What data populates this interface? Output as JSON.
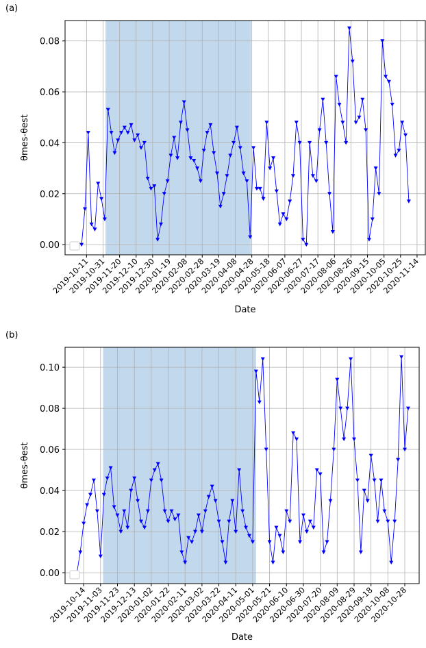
{
  "chart_data": [
    {
      "type": "line",
      "label": "(a)",
      "xlabel": "Date",
      "ylabel": "θmes-θest",
      "color": "#0000ff",
      "marker": "v",
      "grid": true,
      "legend": "lower left",
      "shaded_span": [
        "2019-11-03",
        "2020-04-27"
      ],
      "shade_color": "#c2d8ec",
      "xlim": [
        "2019-09-15",
        "2020-11-24"
      ],
      "xticks": [
        "2019-10-11",
        "2019-10-31",
        "2019-11-20",
        "2019-12-10",
        "2019-12-30",
        "2020-01-19",
        "2020-02-08",
        "2020-02-28",
        "2020-03-19",
        "2020-04-08",
        "2020-04-28",
        "2020-05-18",
        "2020-06-07",
        "2020-06-27",
        "2020-07-17",
        "2020-08-06",
        "2020-08-26",
        "2020-09-15",
        "2020-10-05",
        "2020-10-25",
        "2020-11-14"
      ],
      "ylim": [
        -0.004,
        0.088
      ],
      "yticks": [
        {
          "value": 0,
          "label": "0.00"
        },
        0.02,
        0.04,
        0.06,
        0.08
      ],
      "x": [
        "2019-10-05",
        "2019-10-09",
        "2019-10-13",
        "2019-10-17",
        "2019-10-21",
        "2019-10-25",
        "2019-10-29",
        "2019-11-02",
        "2019-11-06",
        "2019-11-10",
        "2019-11-14",
        "2019-11-18",
        "2019-11-22",
        "2019-11-26",
        "2019-11-30",
        "2019-12-04",
        "2019-12-08",
        "2019-12-12",
        "2019-12-16",
        "2019-12-20",
        "2019-12-24",
        "2019-12-28",
        "2020-01-01",
        "2020-01-05",
        "2020-01-09",
        "2020-01-13",
        "2020-01-17",
        "2020-01-21",
        "2020-01-25",
        "2020-01-29",
        "2020-02-02",
        "2020-02-06",
        "2020-02-10",
        "2020-02-14",
        "2020-02-18",
        "2020-02-22",
        "2020-02-26",
        "2020-03-01",
        "2020-03-05",
        "2020-03-09",
        "2020-03-13",
        "2020-03-17",
        "2020-03-21",
        "2020-03-25",
        "2020-03-29",
        "2020-04-02",
        "2020-04-06",
        "2020-04-10",
        "2020-04-14",
        "2020-04-18",
        "2020-04-22",
        "2020-04-26",
        "2020-04-30",
        "2020-05-04",
        "2020-05-08",
        "2020-05-12",
        "2020-05-16",
        "2020-05-20",
        "2020-05-24",
        "2020-05-28",
        "2020-06-01",
        "2020-06-05",
        "2020-06-09",
        "2020-06-13",
        "2020-06-17",
        "2020-06-21",
        "2020-06-25",
        "2020-06-29",
        "2020-07-03",
        "2020-07-07",
        "2020-07-11",
        "2020-07-15",
        "2020-07-19",
        "2020-07-23",
        "2020-07-27",
        "2020-07-31",
        "2020-08-04",
        "2020-08-08",
        "2020-08-12",
        "2020-08-16",
        "2020-08-20",
        "2020-08-24",
        "2020-08-28",
        "2020-09-01",
        "2020-09-05",
        "2020-09-09",
        "2020-09-13",
        "2020-09-17",
        "2020-09-21",
        "2020-09-25",
        "2020-09-29",
        "2020-10-03",
        "2020-10-07",
        "2020-10-11",
        "2020-10-15",
        "2020-10-19",
        "2020-10-23",
        "2020-10-27",
        "2020-10-31",
        "2020-11-04"
      ],
      "values": [
        0.0,
        0.014,
        0.044,
        0.008,
        0.006,
        0.024,
        0.018,
        0.01,
        0.053,
        0.044,
        0.036,
        0.041,
        0.044,
        0.046,
        0.044,
        0.047,
        0.041,
        0.043,
        0.038,
        0.04,
        0.026,
        0.022,
        0.023,
        0.002,
        0.008,
        0.02,
        0.025,
        0.035,
        0.042,
        0.034,
        0.048,
        0.056,
        0.045,
        0.034,
        0.033,
        0.03,
        0.025,
        0.037,
        0.044,
        0.047,
        0.036,
        0.028,
        0.015,
        0.02,
        0.027,
        0.035,
        0.04,
        0.046,
        0.038,
        0.028,
        0.025,
        0.003,
        0.038,
        0.022,
        0.022,
        0.018,
        0.048,
        0.03,
        0.034,
        0.021,
        0.008,
        0.012,
        0.01,
        0.017,
        0.027,
        0.048,
        0.04,
        0.002,
        0.0,
        0.04,
        0.027,
        0.025,
        0.045,
        0.057,
        0.04,
        0.02,
        0.005,
        0.066,
        0.055,
        0.048,
        0.04,
        0.085,
        0.072,
        0.048,
        0.05,
        0.057,
        0.045,
        0.002,
        0.01,
        0.03,
        0.02,
        0.08,
        0.066,
        0.064,
        0.055,
        0.035,
        0.037,
        0.048,
        0.043,
        0.017
      ]
    },
    {
      "type": "line",
      "label": "(b)",
      "xlabel": "Date",
      "ylabel": "θmes-θest",
      "color": "#0000ff",
      "marker": "v",
      "grid": true,
      "legend": "lower left",
      "shaded_span": [
        "2019-11-06",
        "2020-05-05"
      ],
      "shade_color": "#c2d8ec",
      "xlim": [
        "2019-09-22",
        "2020-11-14"
      ],
      "xticks": [
        "2019-10-14",
        "2019-11-03",
        "2019-11-23",
        "2019-12-13",
        "2020-01-02",
        "2020-01-22",
        "2020-02-11",
        "2020-03-02",
        "2020-03-22",
        "2020-04-11",
        "2020-05-01",
        "2020-05-21",
        "2020-06-10",
        "2020-06-30",
        "2020-07-20",
        "2020-08-09",
        "2020-08-29",
        "2020-09-18",
        "2020-10-08",
        "2020-10-28"
      ],
      "ylim": [
        -0.0053,
        0.1097
      ],
      "yticks": [
        {
          "value": 0,
          "label": "0.00"
        },
        0.02,
        0.04,
        0.06,
        0.08,
        {
          "value": 0.1,
          "label": "0.10"
        }
      ],
      "x": [
        "2019-10-06",
        "2019-10-10",
        "2019-10-14",
        "2019-10-18",
        "2019-10-22",
        "2019-10-26",
        "2019-10-30",
        "2019-11-03",
        "2019-11-07",
        "2019-11-11",
        "2019-11-15",
        "2019-11-19",
        "2019-11-23",
        "2019-11-27",
        "2019-12-01",
        "2019-12-05",
        "2019-12-09",
        "2019-12-13",
        "2019-12-17",
        "2019-12-21",
        "2019-12-25",
        "2019-12-29",
        "2020-01-02",
        "2020-01-06",
        "2020-01-10",
        "2020-01-14",
        "2020-01-18",
        "2020-01-22",
        "2020-01-26",
        "2020-01-30",
        "2020-02-03",
        "2020-02-07",
        "2020-02-11",
        "2020-02-15",
        "2020-02-19",
        "2020-02-23",
        "2020-02-27",
        "2020-03-02",
        "2020-03-06",
        "2020-03-10",
        "2020-03-14",
        "2020-03-18",
        "2020-03-22",
        "2020-03-26",
        "2020-03-30",
        "2020-04-03",
        "2020-04-07",
        "2020-04-11",
        "2020-04-15",
        "2020-04-19",
        "2020-04-23",
        "2020-04-27",
        "2020-05-01",
        "2020-05-05",
        "2020-05-09",
        "2020-05-13",
        "2020-05-17",
        "2020-05-21",
        "2020-05-25",
        "2020-05-29",
        "2020-06-02",
        "2020-06-06",
        "2020-06-10",
        "2020-06-14",
        "2020-06-18",
        "2020-06-22",
        "2020-06-26",
        "2020-06-30",
        "2020-07-04",
        "2020-07-08",
        "2020-07-12",
        "2020-07-16",
        "2020-07-20",
        "2020-07-24",
        "2020-07-28",
        "2020-08-01",
        "2020-08-05",
        "2020-08-09",
        "2020-08-13",
        "2020-08-17",
        "2020-08-21",
        "2020-08-25",
        "2020-08-29",
        "2020-09-02",
        "2020-09-06",
        "2020-09-10",
        "2020-09-14",
        "2020-09-18",
        "2020-09-22",
        "2020-09-26",
        "2020-09-30",
        "2020-10-04",
        "2020-10-08",
        "2020-10-12",
        "2020-10-16",
        "2020-10-20",
        "2020-10-24",
        "2020-10-28",
        "2020-11-01"
      ],
      "values": [
        0.0,
        0.01,
        0.024,
        0.033,
        0.038,
        0.045,
        0.03,
        0.008,
        0.038,
        0.046,
        0.051,
        0.032,
        0.028,
        0.02,
        0.03,
        0.022,
        0.04,
        0.046,
        0.035,
        0.025,
        0.022,
        0.03,
        0.045,
        0.05,
        0.053,
        0.045,
        0.03,
        0.025,
        0.03,
        0.026,
        0.028,
        0.01,
        0.005,
        0.017,
        0.015,
        0.02,
        0.028,
        0.02,
        0.03,
        0.037,
        0.042,
        0.035,
        0.025,
        0.015,
        0.005,
        0.025,
        0.035,
        0.02,
        0.05,
        0.03,
        0.022,
        0.018,
        0.015,
        0.098,
        0.083,
        0.104,
        0.06,
        0.015,
        0.005,
        0.022,
        0.018,
        0.01,
        0.03,
        0.025,
        0.068,
        0.065,
        0.015,
        0.028,
        0.02,
        0.025,
        0.022,
        0.05,
        0.048,
        0.01,
        0.015,
        0.035,
        0.06,
        0.094,
        0.08,
        0.065,
        0.08,
        0.104,
        0.065,
        0.045,
        0.01,
        0.04,
        0.035,
        0.057,
        0.045,
        0.025,
        0.045,
        0.03,
        0.025,
        0.005,
        0.025,
        0.055,
        0.105,
        0.06,
        0.08
      ]
    }
  ]
}
